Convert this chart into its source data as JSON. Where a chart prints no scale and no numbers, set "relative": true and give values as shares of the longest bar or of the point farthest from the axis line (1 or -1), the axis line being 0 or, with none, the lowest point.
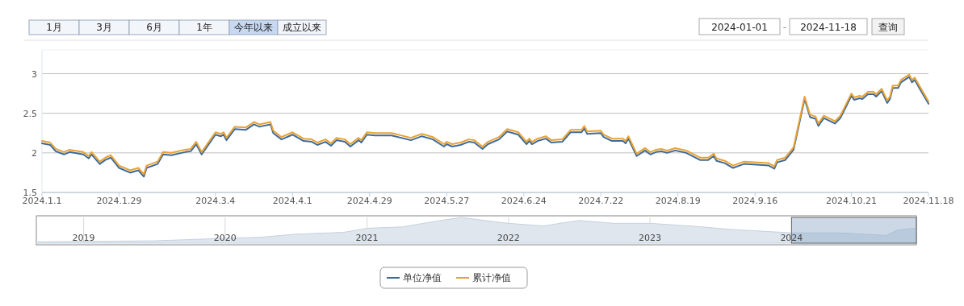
{
  "chart_data": [
    {
      "type": "line",
      "annotations": [
        "1月",
        "3月",
        "6月",
        "1年",
        "今年以来",
        "成立以来",
        "2024-01-01",
        "-",
        "2024-11-18",
        "查询"
      ],
      "x": [
        "2024-01-01",
        "2024-01-04",
        "2024-01-06",
        "2024-01-09",
        "2024-01-11",
        "2024-01-16",
        "2024-01-18",
        "2024-01-19",
        "2024-01-22",
        "2024-01-24",
        "2024-01-26",
        "2024-01-29",
        "2024-02-02",
        "2024-02-05",
        "2024-02-07",
        "2024-02-08",
        "2024-02-12",
        "2024-02-14",
        "2024-02-17",
        "2024-02-22",
        "2024-02-24",
        "2024-02-26",
        "2024-02-28",
        "2024-03-04",
        "2024-03-06",
        "2024-03-07",
        "2024-03-08",
        "2024-03-11",
        "2024-03-15",
        "2024-03-18",
        "2024-03-20",
        "2024-03-24",
        "2024-03-25",
        "2024-03-28",
        "2024-04-01",
        "2024-04-05",
        "2024-04-08",
        "2024-04-10",
        "2024-04-13",
        "2024-04-15",
        "2024-04-17",
        "2024-04-20",
        "2024-04-22",
        "2024-04-25",
        "2024-04-26",
        "2024-04-28",
        "2024-05-01",
        "2024-05-07",
        "2024-05-14",
        "2024-05-18",
        "2024-05-22",
        "2024-05-26",
        "2024-05-27",
        "2024-05-29",
        "2024-06-01",
        "2024-06-04",
        "2024-06-06",
        "2024-06-09",
        "2024-06-11",
        "2024-06-15",
        "2024-06-18",
        "2024-06-22",
        "2024-06-25",
        "2024-06-26",
        "2024-06-27",
        "2024-06-29",
        "2024-07-02",
        "2024-07-04",
        "2024-07-08",
        "2024-07-11",
        "2024-07-15",
        "2024-07-16",
        "2024-07-17",
        "2024-07-22",
        "2024-07-23",
        "2024-07-26",
        "2024-07-30",
        "2024-07-31",
        "2024-08-01",
        "2024-08-04",
        "2024-08-07",
        "2024-08-09",
        "2024-08-11",
        "2024-08-13",
        "2024-08-15",
        "2024-08-18",
        "2024-08-22",
        "2024-08-27",
        "2024-08-30",
        "2024-09-01",
        "2024-09-02",
        "2024-09-05",
        "2024-09-08",
        "2024-09-12",
        "2024-09-21",
        "2024-09-23",
        "2024-09-24",
        "2024-09-27",
        "2024-09-30",
        "2024-10-04",
        "2024-10-06",
        "2024-10-08",
        "2024-10-09",
        "2024-10-11",
        "2024-10-15",
        "2024-10-17",
        "2024-10-21",
        "2024-10-22",
        "2024-10-24",
        "2024-10-25",
        "2024-10-27",
        "2024-10-29",
        "2024-10-30",
        "2024-11-01",
        "2024-11-03",
        "2024-11-04",
        "2024-11-05",
        "2024-11-07",
        "2024-11-08",
        "2024-11-11",
        "2024-11-12",
        "2024-11-13",
        "2024-11-15",
        "2024-11-18"
      ],
      "series": [
        {
          "name": "单位净值",
          "color": "#3f6a98",
          "values": [
            2.12,
            2.1,
            2.02,
            1.98,
            2.01,
            1.98,
            1.93,
            1.98,
            1.86,
            1.91,
            1.94,
            1.81,
            1.75,
            1.78,
            1.7,
            1.81,
            1.86,
            1.98,
            1.97,
            2.01,
            2.02,
            2.11,
            1.98,
            2.23,
            2.21,
            2.23,
            2.16,
            2.3,
            2.29,
            2.36,
            2.33,
            2.36,
            2.25,
            2.17,
            2.23,
            2.15,
            2.14,
            2.1,
            2.14,
            2.09,
            2.16,
            2.14,
            2.08,
            2.16,
            2.13,
            2.23,
            2.22,
            2.22,
            2.16,
            2.21,
            2.17,
            2.08,
            2.11,
            2.08,
            2.1,
            2.14,
            2.13,
            2.05,
            2.11,
            2.17,
            2.27,
            2.23,
            2.11,
            2.15,
            2.11,
            2.15,
            2.18,
            2.13,
            2.14,
            2.26,
            2.26,
            2.31,
            2.24,
            2.25,
            2.2,
            2.15,
            2.15,
            2.12,
            2.18,
            1.96,
            2.03,
            1.98,
            2.01,
            2.02,
            2.0,
            2.03,
            2.0,
            1.91,
            1.91,
            1.96,
            1.9,
            1.87,
            1.81,
            1.86,
            1.84,
            1.8,
            1.88,
            1.91,
            2.04,
            2.68,
            2.45,
            2.43,
            2.34,
            2.44,
            2.37,
            2.44,
            2.72,
            2.67,
            2.69,
            2.68,
            2.74,
            2.74,
            2.71,
            2.78,
            2.63,
            2.68,
            2.82,
            2.82,
            2.89,
            2.96,
            2.89,
            2.92,
            2.8,
            2.62
          ]
        },
        {
          "name": "累计净值",
          "color": "#e8a232",
          "values": [
            2.15,
            2.13,
            2.05,
            2.01,
            2.04,
            2.01,
            1.96,
            2.01,
            1.89,
            1.94,
            1.97,
            1.84,
            1.78,
            1.81,
            1.73,
            1.84,
            1.89,
            2.01,
            2.0,
            2.04,
            2.05,
            2.14,
            2.01,
            2.26,
            2.24,
            2.26,
            2.19,
            2.33,
            2.32,
            2.39,
            2.36,
            2.39,
            2.28,
            2.2,
            2.26,
            2.18,
            2.17,
            2.13,
            2.17,
            2.12,
            2.19,
            2.17,
            2.11,
            2.19,
            2.16,
            2.26,
            2.25,
            2.25,
            2.19,
            2.24,
            2.2,
            2.11,
            2.14,
            2.11,
            2.13,
            2.17,
            2.16,
            2.08,
            2.14,
            2.2,
            2.3,
            2.26,
            2.14,
            2.18,
            2.14,
            2.18,
            2.21,
            2.16,
            2.17,
            2.29,
            2.29,
            2.34,
            2.27,
            2.28,
            2.23,
            2.18,
            2.18,
            2.15,
            2.21,
            1.99,
            2.06,
            2.01,
            2.04,
            2.05,
            2.03,
            2.06,
            2.03,
            1.94,
            1.94,
            1.99,
            1.93,
            1.9,
            1.84,
            1.89,
            1.87,
            1.83,
            1.91,
            1.94,
            2.07,
            2.71,
            2.48,
            2.46,
            2.37,
            2.47,
            2.4,
            2.47,
            2.75,
            2.7,
            2.72,
            2.71,
            2.77,
            2.77,
            2.74,
            2.81,
            2.66,
            2.71,
            2.85,
            2.85,
            2.92,
            2.99,
            2.92,
            2.95,
            2.83,
            2.65
          ]
        }
      ],
      "xlim": [
        "2024-01-01",
        "2024-11-18"
      ],
      "xticks": [
        {
          "value": "2024-01-01",
          "label": "2024.1.1"
        },
        {
          "value": "2024-01-29",
          "label": "2024.1.29"
        },
        {
          "value": "2024-03-04",
          "label": "2024.3.4"
        },
        {
          "value": "2024-04-01",
          "label": "2024.4.1"
        },
        {
          "value": "2024-04-29",
          "label": "2024.4.29"
        },
        {
          "value": "2024-05-27",
          "label": "2024.5.27"
        },
        {
          "value": "2024-06-24",
          "label": "2024.6.24"
        },
        {
          "value": "2024-07-22",
          "label": "2024.7.22"
        },
        {
          "value": "2024-08-19",
          "label": "2024.8.19"
        },
        {
          "value": "2024-09-16",
          "label": "2024.9.16"
        },
        {
          "value": "2024-10-21",
          "label": "2024.10.21"
        },
        {
          "value": "2024-11-18",
          "label": "2024.11.18"
        }
      ],
      "ylim": [
        1.5,
        3.3
      ],
      "yticks": [
        1.5,
        2,
        2.5,
        3
      ],
      "grid": "y",
      "legend": "bottom",
      "marker": "none"
    },
    {
      "type": "area",
      "relative": true,
      "x": [
        "2018-09",
        "2019-01",
        "2019-07",
        "2020-01",
        "2020-04",
        "2020-07",
        "2020-11",
        "2021-01",
        "2021-04",
        "2021-07",
        "2021-09",
        "2021-11",
        "2022-01",
        "2022-04",
        "2022-07",
        "2022-10",
        "2023-01",
        "2023-05",
        "2023-08",
        "2024-01",
        "2024-05",
        "2024-09",
        "2024-10",
        "2024-11-18"
      ],
      "series": [
        {
          "color": "#dfe6ee",
          "values": [
            0.05,
            0.07,
            0.09,
            0.19,
            0.23,
            0.35,
            0.42,
            0.58,
            0.63,
            0.86,
            1,
            0.88,
            0.77,
            0.67,
            0.88,
            0.77,
            0.77,
            0.65,
            0.53,
            0.4,
            0.4,
            0.3,
            0.51,
            0.58
          ]
        }
      ],
      "xlim": [
        "2018-09",
        "2024-11-18"
      ],
      "xticks": [
        "2019",
        "2020",
        "2021",
        "2022",
        "2023",
        "2024"
      ],
      "grid": "x",
      "bands": [
        {
          "axis": "x",
          "from": "2024-01-01",
          "to": "2024-11-18",
          "color": "#8fa8c8"
        }
      ]
    }
  ]
}
